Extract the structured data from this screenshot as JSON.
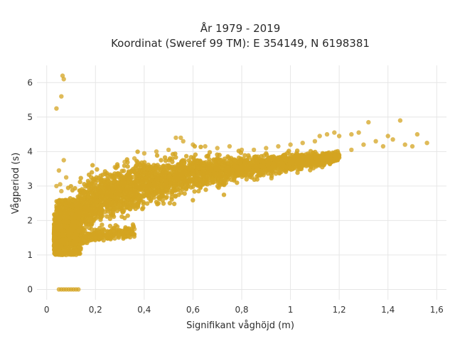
{
  "chart_data": {
    "type": "scatter",
    "title_line1": "År 1979 - 2019",
    "title_line2": "Koordinat (Sweref 99 TM): E 354149, N 6198381",
    "xlabel": "Signifikant våghöjd (m)",
    "ylabel": "Vågperiod (s)",
    "xlim": [
      -0.04,
      1.64
    ],
    "ylim": [
      -0.3,
      6.5
    ],
    "x_ticks": [
      0,
      0.2,
      0.4,
      0.6,
      0.8,
      1,
      1.2,
      1.4,
      1.6
    ],
    "x_tick_labels": [
      "0",
      "0,2",
      "0,4",
      "0,6",
      "0,8",
      "1",
      "1,2",
      "1,4",
      "1,6"
    ],
    "y_ticks": [
      0,
      1,
      2,
      3,
      4,
      5,
      6
    ],
    "y_tick_labels": [
      "0",
      "1",
      "2",
      "3",
      "4",
      "5",
      "6"
    ],
    "grid": true,
    "marker_color": "#D4A421",
    "series": [
      {
        "values_note": "",
        "points": [
          {
            "x": 0.065,
            "y": 6.2
          },
          {
            "x": 0.07,
            "y": 6.1
          },
          {
            "x": 0.06,
            "y": 5.6
          },
          {
            "x": 0.04,
            "y": 5.25
          },
          {
            "x": 0.07,
            "y": 3.75
          },
          {
            "x": 0.05,
            "y": 3.45
          },
          {
            "x": 0.08,
            "y": 3.25
          },
          {
            "x": 0.055,
            "y": 3.05
          },
          {
            "x": 0.04,
            "y": 3.0
          },
          {
            "x": 0.06,
            "y": 2.85
          },
          {
            "x": 0.05,
            "y": 0
          },
          {
            "x": 0.06,
            "y": 0
          },
          {
            "x": 0.07,
            "y": 0
          },
          {
            "x": 0.08,
            "y": 0
          },
          {
            "x": 0.09,
            "y": 0
          },
          {
            "x": 0.1,
            "y": 0
          },
          {
            "x": 0.11,
            "y": 0
          },
          {
            "x": 0.12,
            "y": 0
          },
          {
            "x": 0.13,
            "y": 0
          },
          {
            "x": 0.03,
            "y": 1.6
          },
          {
            "x": 0.03,
            "y": 1.45
          },
          {
            "x": 0.03,
            "y": 1.25
          },
          {
            "x": 0.035,
            "y": 1.5
          },
          {
            "x": 0.04,
            "y": 1.2
          },
          {
            "x": 0.05,
            "y": 1.1
          },
          {
            "x": 0.06,
            "y": 1.05
          },
          {
            "x": 0.08,
            "y": 1.0
          },
          {
            "x": 0.1,
            "y": 1.05
          },
          {
            "x": 0.12,
            "y": 1.1
          },
          {
            "x": 0.14,
            "y": 1.2
          },
          {
            "x": 0.06,
            "y": 1.8
          },
          {
            "x": 0.07,
            "y": 2.1
          },
          {
            "x": 0.08,
            "y": 2.4
          },
          {
            "x": 0.09,
            "y": 2.6
          },
          {
            "x": 0.1,
            "y": 2.2
          },
          {
            "x": 0.12,
            "y": 2.5
          },
          {
            "x": 0.11,
            "y": 1.5
          },
          {
            "x": 0.13,
            "y": 1.7
          },
          {
            "x": 0.15,
            "y": 2.8
          },
          {
            "x": 0.18,
            "y": 2.9
          },
          {
            "x": 0.16,
            "y": 1.5
          },
          {
            "x": 0.2,
            "y": 1.5
          },
          {
            "x": 0.22,
            "y": 1.55
          },
          {
            "x": 0.25,
            "y": 1.6
          },
          {
            "x": 0.28,
            "y": 1.65
          },
          {
            "x": 0.32,
            "y": 1.65
          },
          {
            "x": 0.36,
            "y": 1.75
          },
          {
            "x": 0.2,
            "y": 3.1
          },
          {
            "x": 0.24,
            "y": 3.35
          },
          {
            "x": 0.28,
            "y": 3.55
          },
          {
            "x": 0.32,
            "y": 3.7
          },
          {
            "x": 0.36,
            "y": 3.8
          },
          {
            "x": 0.4,
            "y": 3.95
          },
          {
            "x": 0.45,
            "y": 4.0
          },
          {
            "x": 0.5,
            "y": 4.05
          },
          {
            "x": 0.53,
            "y": 4.4
          },
          {
            "x": 0.55,
            "y": 4.4
          },
          {
            "x": 0.56,
            "y": 4.3
          },
          {
            "x": 0.6,
            "y": 4.2
          },
          {
            "x": 0.65,
            "y": 4.15
          },
          {
            "x": 0.7,
            "y": 4.1
          },
          {
            "x": 0.75,
            "y": 4.15
          },
          {
            "x": 0.8,
            "y": 4.05
          },
          {
            "x": 0.85,
            "y": 4.05
          },
          {
            "x": 0.9,
            "y": 4.1
          },
          {
            "x": 0.95,
            "y": 4.15
          },
          {
            "x": 1.0,
            "y": 4.2
          },
          {
            "x": 1.05,
            "y": 4.25
          },
          {
            "x": 1.1,
            "y": 4.3
          },
          {
            "x": 1.12,
            "y": 4.45
          },
          {
            "x": 1.15,
            "y": 4.5
          },
          {
            "x": 1.18,
            "y": 4.55
          },
          {
            "x": 1.2,
            "y": 4.45
          },
          {
            "x": 1.25,
            "y": 4.5
          },
          {
            "x": 1.28,
            "y": 4.55
          },
          {
            "x": 1.3,
            "y": 4.2
          },
          {
            "x": 1.35,
            "y": 4.3
          },
          {
            "x": 1.32,
            "y": 4.85
          },
          {
            "x": 1.4,
            "y": 4.45
          },
          {
            "x": 1.42,
            "y": 4.35
          },
          {
            "x": 1.45,
            "y": 4.9
          },
          {
            "x": 1.47,
            "y": 4.2
          },
          {
            "x": 1.5,
            "y": 4.15
          },
          {
            "x": 1.52,
            "y": 4.5
          },
          {
            "x": 1.56,
            "y": 4.25
          },
          {
            "x": 1.38,
            "y": 4.15
          },
          {
            "x": 1.25,
            "y": 4.05
          },
          {
            "x": 1.2,
            "y": 3.9
          },
          {
            "x": 1.15,
            "y": 3.85
          }
        ],
        "point_cloud": {
          "description_note": "",
          "x_range": [
            0.03,
            1.2
          ],
          "center_curve": [
            {
              "x": 0.05,
              "y": 1.6
            },
            {
              "x": 0.1,
              "y": 1.9
            },
            {
              "x": 0.15,
              "y": 2.3
            },
            {
              "x": 0.2,
              "y": 2.55
            },
            {
              "x": 0.3,
              "y": 2.85
            },
            {
              "x": 0.4,
              "y": 3.05
            },
            {
              "x": 0.5,
              "y": 3.2
            },
            {
              "x": 0.6,
              "y": 3.35
            },
            {
              "x": 0.7,
              "y": 3.45
            },
            {
              "x": 0.8,
              "y": 3.55
            },
            {
              "x": 0.9,
              "y": 3.6
            },
            {
              "x": 1.0,
              "y": 3.7
            },
            {
              "x": 1.1,
              "y": 3.75
            },
            {
              "x": 1.2,
              "y": 3.85
            }
          ],
          "spread": [
            {
              "x": 0.05,
              "y": 0.6
            },
            {
              "x": 0.1,
              "y": 0.9
            },
            {
              "x": 0.2,
              "y": 0.75
            },
            {
              "x": 0.4,
              "y": 0.65
            },
            {
              "x": 0.6,
              "y": 0.5
            },
            {
              "x": 0.8,
              "y": 0.35
            },
            {
              "x": 1.0,
              "y": 0.25
            },
            {
              "x": 1.2,
              "y": 0.15
            }
          ]
        }
      }
    ]
  }
}
